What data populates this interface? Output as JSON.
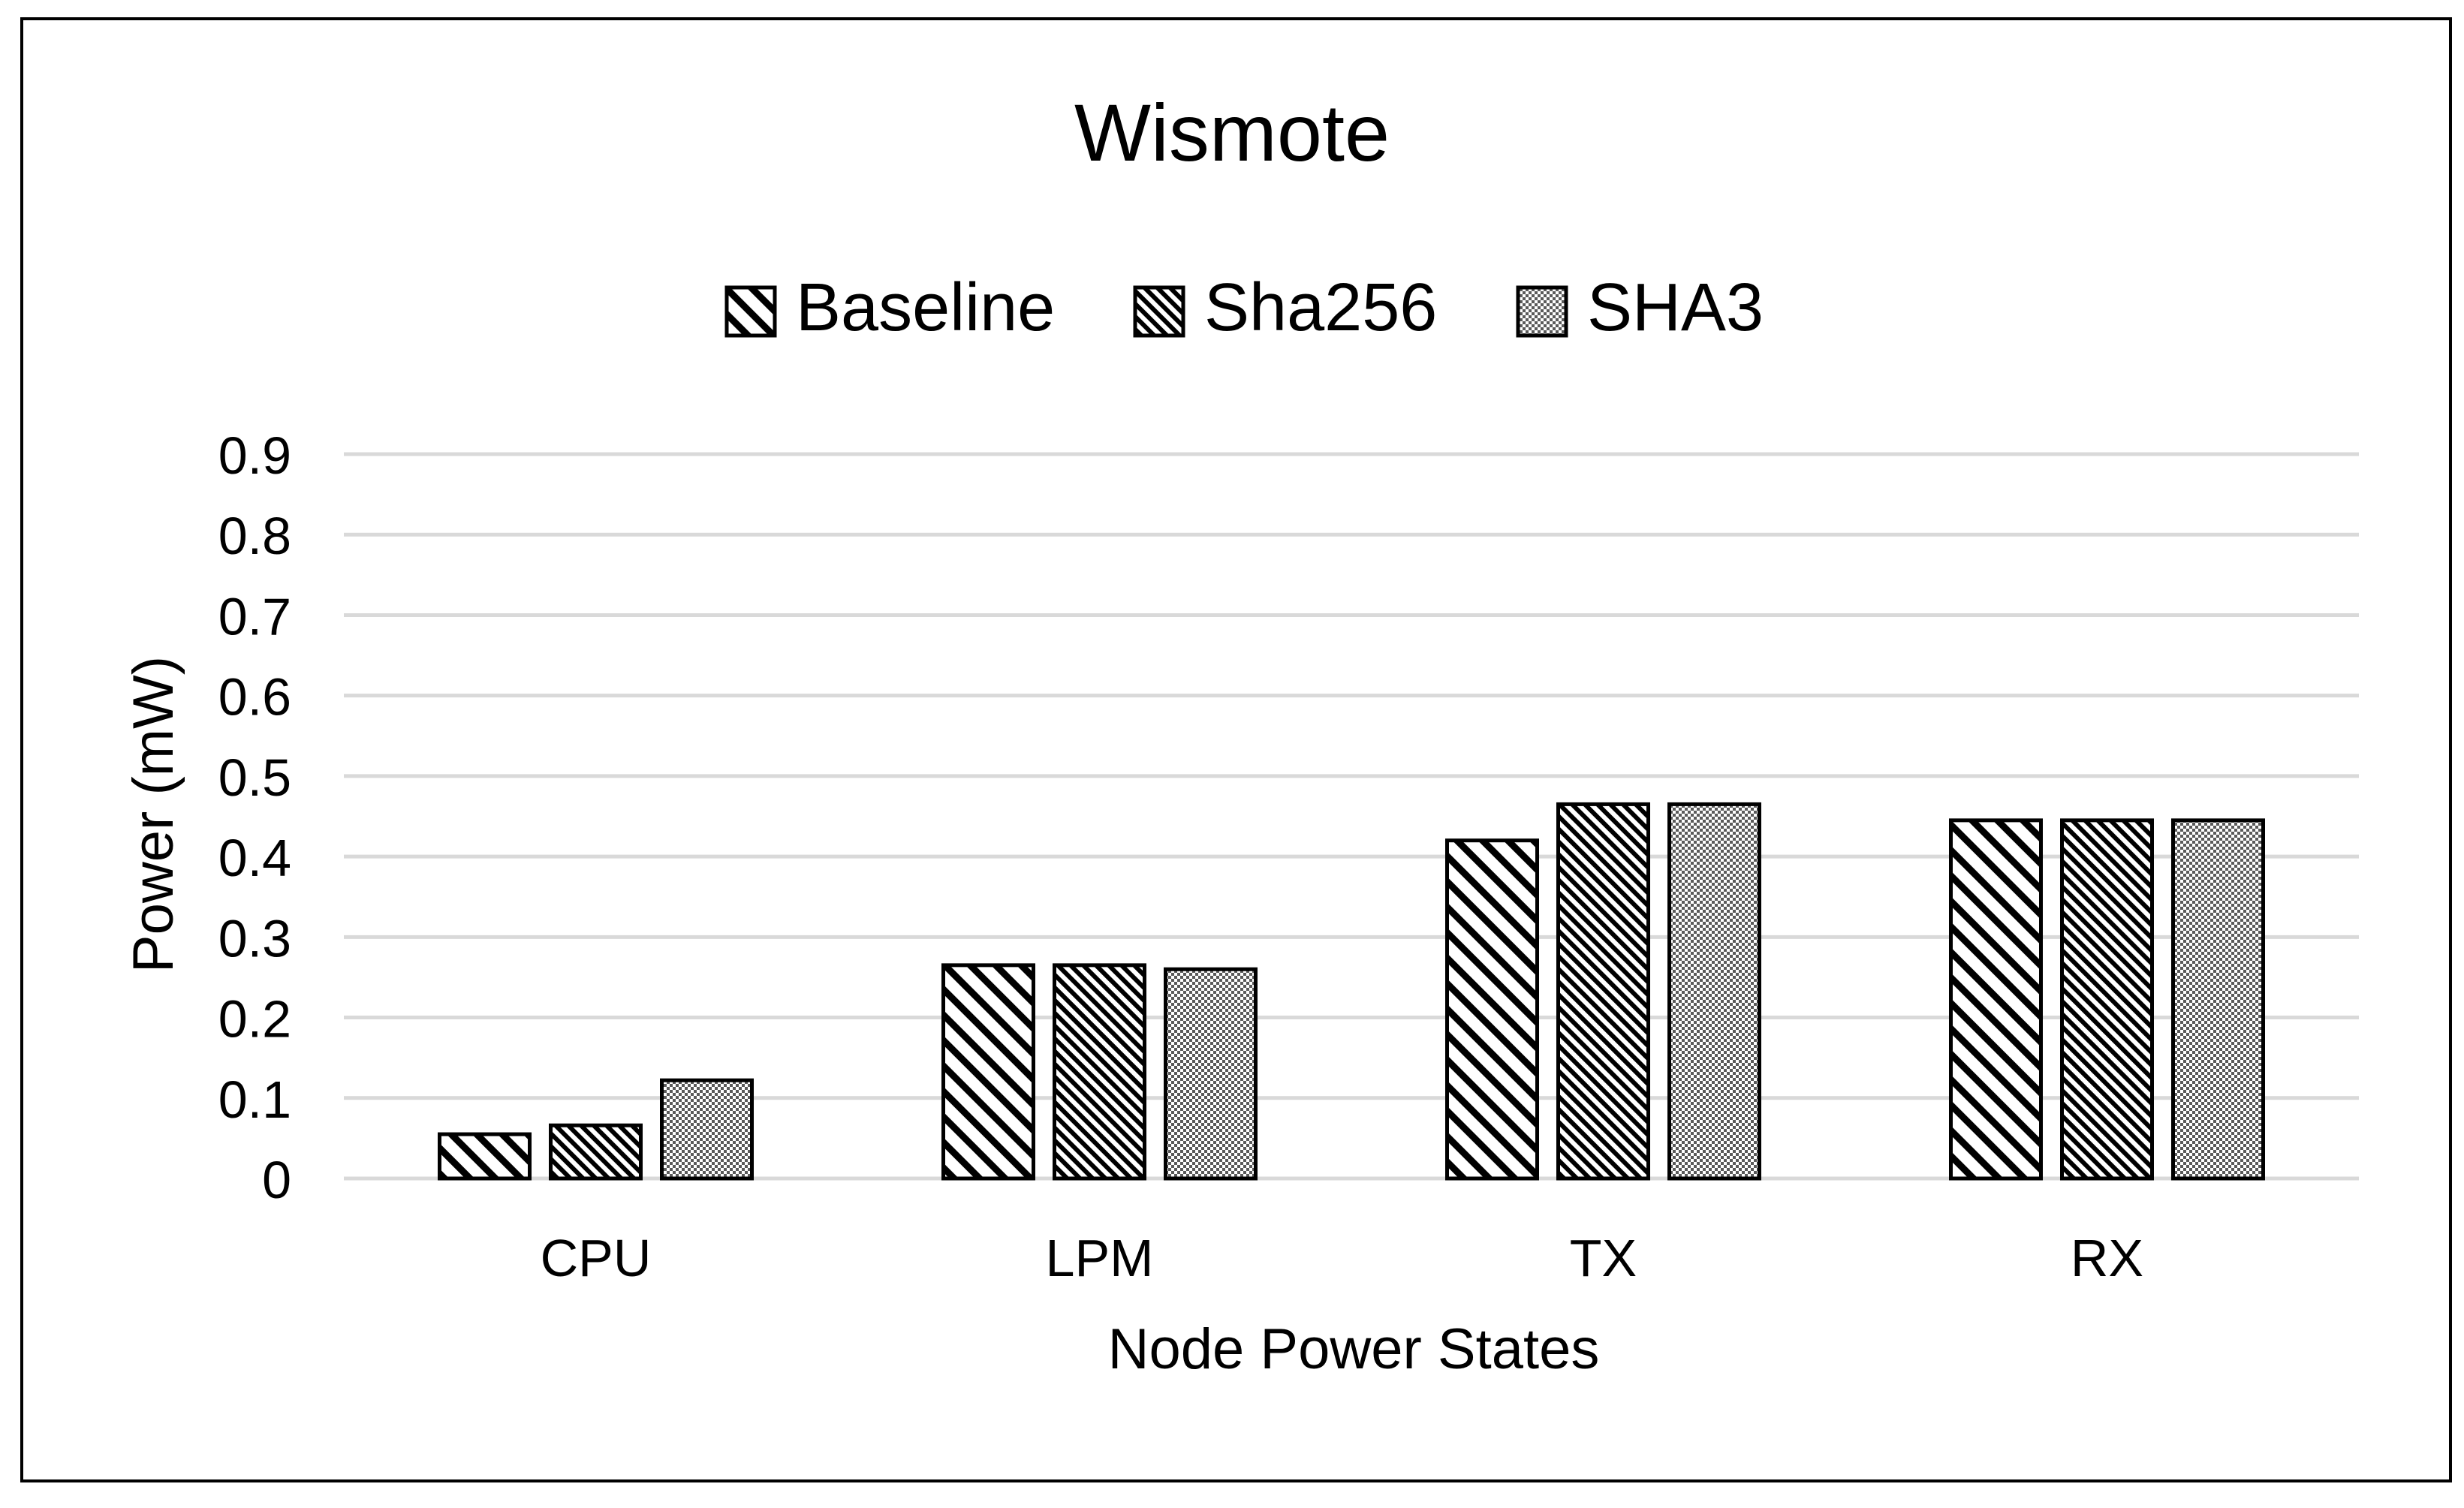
{
  "chart_data": {
    "type": "bar",
    "title": "Wismote",
    "xlabel": "Node Power States",
    "ylabel": "Power (mW)",
    "categories": [
      "CPU",
      "LPM",
      "TX",
      "RX"
    ],
    "series": [
      {
        "name": "Baseline",
        "pattern": "diagonal-wide",
        "values": [
          0.055,
          0.265,
          0.42,
          0.445
        ]
      },
      {
        "name": "Sha256",
        "pattern": "diagonal-dense",
        "values": [
          0.066,
          0.265,
          0.465,
          0.445
        ]
      },
      {
        "name": "SHA3",
        "pattern": "dotted",
        "values": [
          0.122,
          0.26,
          0.465,
          0.445
        ]
      }
    ],
    "ylim": [
      0,
      0.9
    ],
    "yticks": [
      "0",
      "0.1",
      "0.2",
      "0.3",
      "0.4",
      "0.5",
      "0.6",
      "0.7",
      "0.8",
      "0.9"
    ],
    "grid": true,
    "legend_position": "top",
    "colors": {
      "bar_stroke": "#000000",
      "grid": "#d9d9d9",
      "frame": "#000000"
    }
  }
}
